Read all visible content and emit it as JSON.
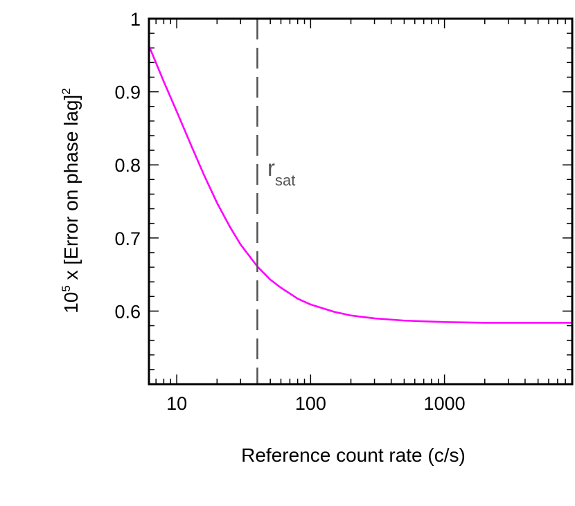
{
  "chart_data": {
    "type": "line",
    "xscale": "log",
    "xlim": [
      6.2,
      9000
    ],
    "ylim": [
      0.5,
      1.0
    ],
    "x_ticks": [
      "10",
      "100",
      "1000"
    ],
    "y_ticks": [
      "1",
      "0.9",
      "0.8",
      "0.7",
      "0.6"
    ],
    "xlabel": "Reference count rate (c/s)",
    "ylabel": {
      "prefix": "10",
      "exp": "5",
      "main": " x [Error on phase lag]",
      "suffix": "2"
    },
    "series": [
      {
        "color": "#ff00ff",
        "x": [
          6.2,
          8,
          10,
          13,
          16,
          20,
          25,
          30,
          40,
          50,
          60,
          80,
          100,
          150,
          200,
          300,
          500,
          1000,
          2000,
          5000,
          9000
        ],
        "y": [
          0.963,
          0.914,
          0.873,
          0.824,
          0.786,
          0.748,
          0.715,
          0.691,
          0.661,
          0.643,
          0.632,
          0.617,
          0.609,
          0.599,
          0.594,
          0.59,
          0.587,
          0.585,
          0.584,
          0.584,
          0.584
        ]
      }
    ],
    "annotations": [
      {
        "type": "vline",
        "x": 40,
        "style": "dashed",
        "color": "#555555",
        "label_main": "r",
        "label_sub": "sat"
      }
    ],
    "grid": false,
    "legend": "none"
  }
}
